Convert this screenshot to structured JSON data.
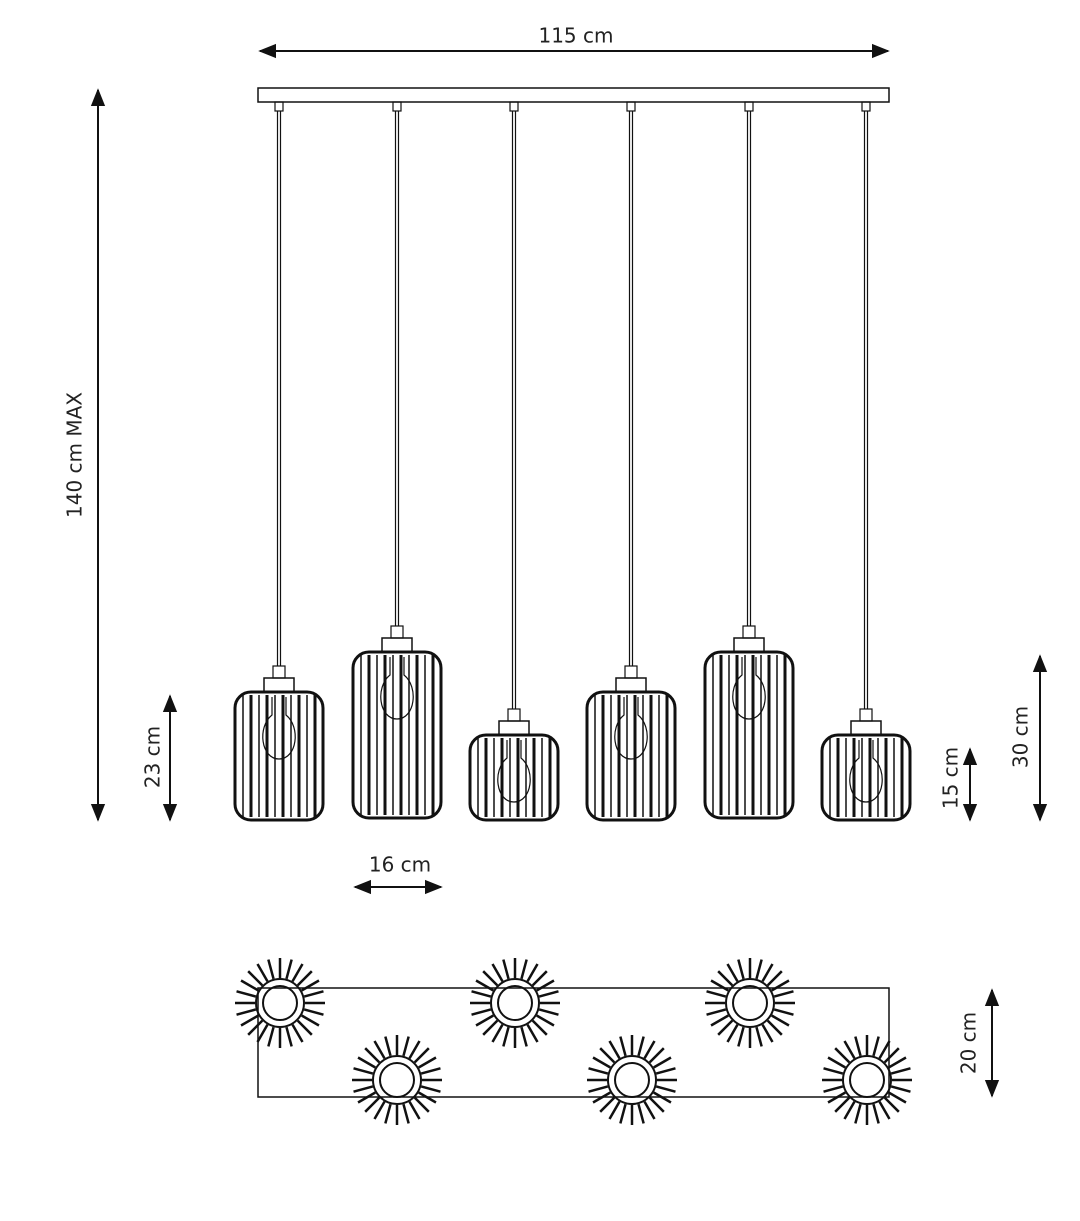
{
  "dimensions": {
    "width": "115 cm",
    "height_max": "140 cm MAX",
    "shade_medium_height": "23 cm",
    "shade_diameter": "16 cm",
    "shade_small_height": "15 cm",
    "shade_large_height": "30 cm",
    "canopy_depth": "20 cm"
  }
}
